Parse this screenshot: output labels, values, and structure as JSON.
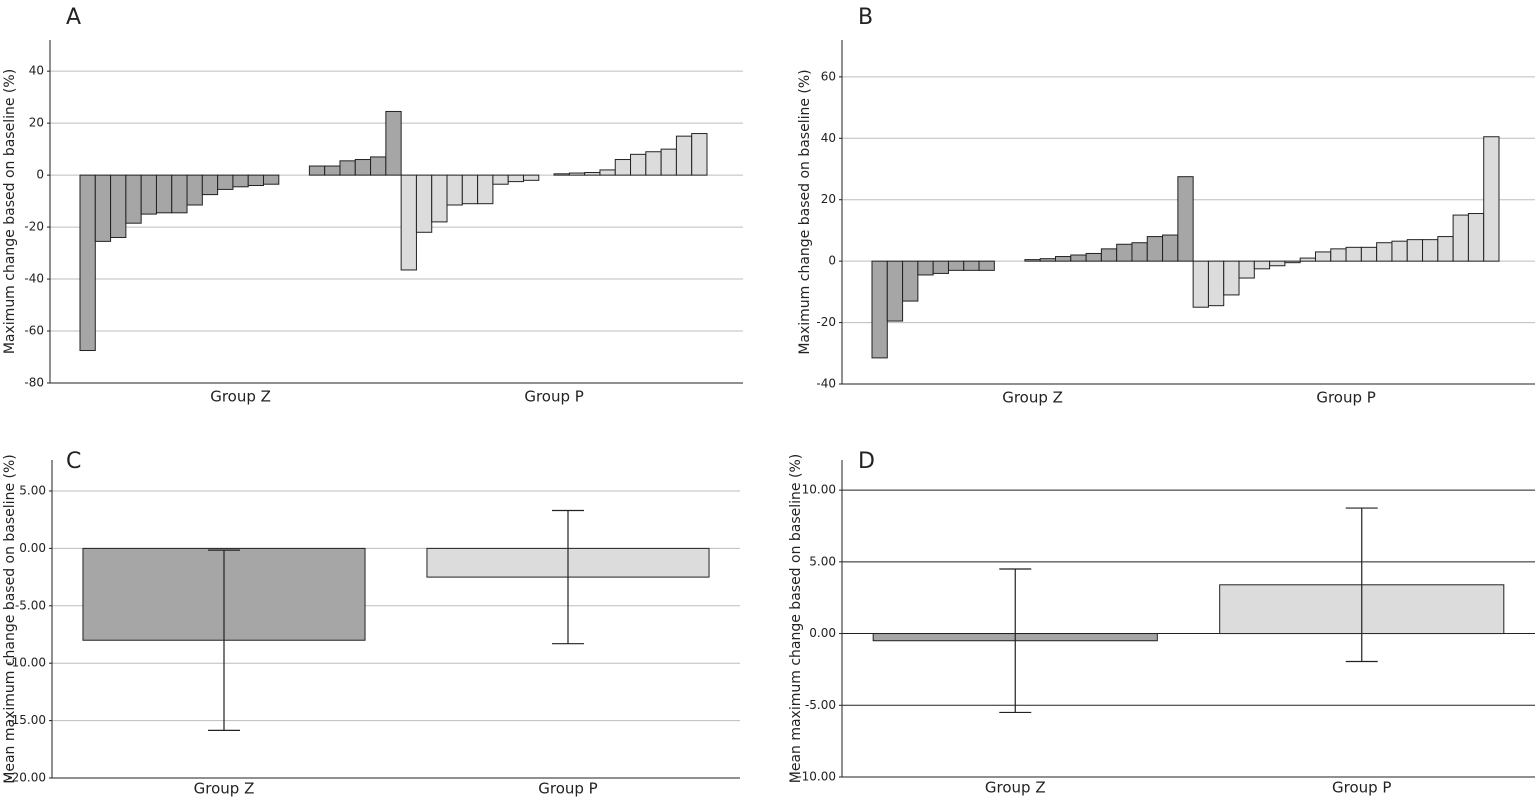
{
  "chart_data": [
    {
      "type": "waterfall",
      "letter": "A",
      "ylabel": "Maximum change based on baseline (%)",
      "ylim": [
        -80,
        52
      ],
      "yticks": [
        -80,
        -60,
        -40,
        -20,
        0,
        20,
        40
      ],
      "grid": true,
      "grid_color": "#bdbdbd",
      "groups": [
        {
          "label": "Group Z",
          "color": "#a6a6a6",
          "values": [
            -67.5,
            -25.5,
            -24,
            -18.5,
            -15,
            -14.5,
            -14.5,
            -11.5,
            -7.5,
            -5.5,
            -4.5,
            -4,
            -3.5,
            null,
            null,
            3.5,
            3.5,
            5.5,
            6,
            7,
            24.5
          ]
        },
        {
          "label": "Group P",
          "color": "#dcdcdc",
          "values": [
            -36.5,
            -22,
            -18,
            -11.5,
            -11,
            -11,
            -3.5,
            -2.5,
            -2,
            null,
            0.5,
            0.8,
            1,
            2,
            6,
            8,
            9,
            10,
            15,
            16
          ]
        }
      ]
    },
    {
      "type": "waterfall",
      "letter": "B",
      "ylabel": "Maximum change based on baseline (%)",
      "ylim": [
        -40,
        72
      ],
      "yticks": [
        -40,
        -20,
        0,
        20,
        40,
        60
      ],
      "grid": true,
      "grid_color": "#bdbdbd",
      "groups": [
        {
          "label": "Group Z",
          "color": "#a6a6a6",
          "values": [
            -31.5,
            -19.5,
            -13,
            -4.5,
            -4,
            -3,
            -3,
            -3,
            null,
            null,
            0.5,
            0.8,
            1.5,
            2,
            2.5,
            4,
            5.5,
            6,
            8,
            8.5,
            27.5
          ]
        },
        {
          "label": "Group P",
          "color": "#dcdcdc",
          "values": [
            -15,
            -14.5,
            -11,
            -5.5,
            -2.5,
            -1.5,
            -0.5,
            1,
            3,
            4,
            4.5,
            4.5,
            6,
            6.5,
            7,
            7,
            8,
            15,
            15.5,
            40.5
          ]
        }
      ]
    },
    {
      "type": "bar",
      "letter": "C",
      "ylabel": "Mean maximum change based on baseline (%)",
      "ylim": [
        -20,
        7.7
      ],
      "yticks": [
        {
          "value": -20,
          "label": "-20.00"
        },
        {
          "value": -15,
          "label": "-15.00"
        },
        {
          "value": -10,
          "label": "-10.00"
        },
        {
          "value": -5,
          "label": "-5.00"
        },
        {
          "value": 0,
          "label": "0.00"
        },
        {
          "value": 5,
          "label": "5.00"
        }
      ],
      "grid": true,
      "grid_color": "#bdbdbd",
      "categories": [
        "Group Z",
        "Group P"
      ],
      "values": [
        -8.0,
        -2.5
      ],
      "errors": [
        7.85,
        5.8
      ],
      "colors": [
        "#a6a6a6",
        "#dcdcdc"
      ]
    },
    {
      "type": "bar",
      "letter": "D",
      "ylabel": "Mean maximum change based on baseline (%)",
      "ylim": [
        -10,
        12.1
      ],
      "yticks": [
        {
          "value": -10,
          "label": "-10.00"
        },
        {
          "value": -5,
          "label": "-5.00"
        },
        {
          "value": 0,
          "label": "0.00"
        },
        {
          "value": 5,
          "label": "5.00"
        },
        {
          "value": 10,
          "label": "10.00"
        }
      ],
      "grid": true,
      "grid_color": "#222",
      "categories": [
        "Group Z",
        "Group P"
      ],
      "values": [
        -0.5,
        3.4
      ],
      "errors": [
        5,
        5.35
      ],
      "colors": [
        "#a6a6a6",
        "#dcdcdc"
      ]
    }
  ]
}
